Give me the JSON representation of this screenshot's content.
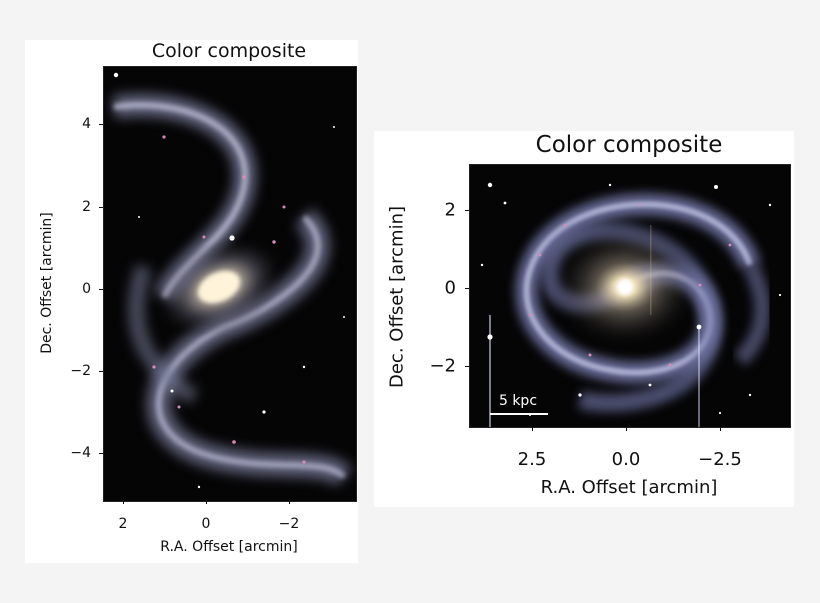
{
  "panels": [
    {
      "title": "Color composite",
      "xlabel": "R.A. Offset [arcmin]",
      "ylabel": "Dec. Offset [arcmin]",
      "x_ticks": [
        "2",
        "0",
        "−2"
      ],
      "y_ticks": [
        "4",
        "2",
        "0",
        "−2",
        "−4"
      ],
      "image": "barred-spiral-galaxy-image"
    },
    {
      "title": "Color composite",
      "xlabel": "R.A. Offset [arcmin]",
      "ylabel": "Dec. Offset [arcmin]",
      "x_ticks": [
        "2.5",
        "0.0",
        "−2.5"
      ],
      "y_ticks": [
        "2",
        "0",
        "−2"
      ],
      "image": "face-on-spiral-galaxy-image",
      "scale_bar": "5 kpc"
    }
  ],
  "colors": {
    "sky": "#050506",
    "core": "#fff3d6",
    "arm": "#a9a9d6",
    "hii": "#d97fb0"
  }
}
